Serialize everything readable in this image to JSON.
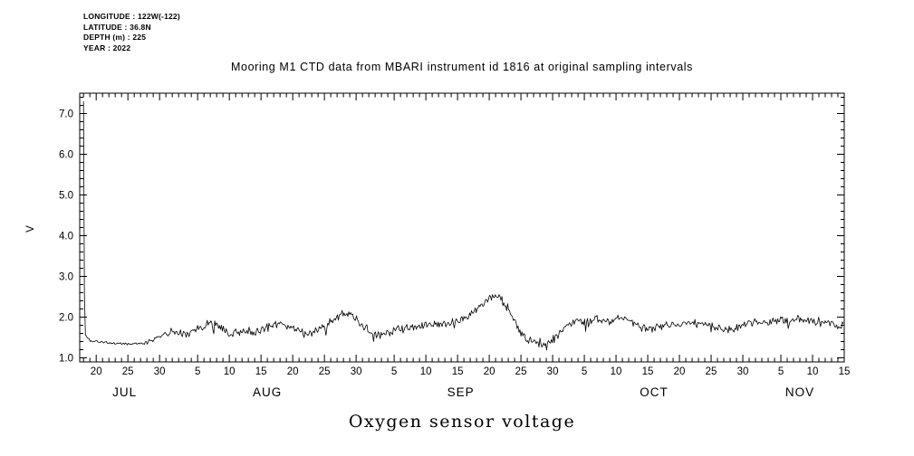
{
  "header": {
    "lines": [
      "LONGITUDE : 122W(-122)",
      "LATITUDE : 36.8N",
      "DEPTH (m) : 225",
      "YEAR : 2022"
    ]
  },
  "chart_data": {
    "type": "line",
    "title": "Mooring M1 CTD data from MBARI instrument id 1816 at original sampling intervals",
    "xlabel": "Oxygen sensor voltage",
    "ylabel": "V",
    "line_color": "#000000",
    "ylim": [
      0.9,
      7.5
    ],
    "y_major_ticks": [
      1.0,
      2.0,
      3.0,
      4.0,
      5.0,
      6.0,
      7.0
    ],
    "y_minor_step": 0.2,
    "x_unit": "days since 2022-07-18",
    "xlim_days": [
      -0.6,
      120
    ],
    "x_minor_step_days": 1,
    "x_major_ticks": [
      [
        2,
        "20"
      ],
      [
        7,
        "25"
      ],
      [
        12,
        "30"
      ],
      [
        18,
        "5"
      ],
      [
        23,
        "10"
      ],
      [
        28,
        "15"
      ],
      [
        33,
        "20"
      ],
      [
        38,
        "25"
      ],
      [
        43,
        "30"
      ],
      [
        49,
        "5"
      ],
      [
        54,
        "10"
      ],
      [
        59,
        "15"
      ],
      [
        64,
        "20"
      ],
      [
        69,
        "25"
      ],
      [
        74,
        "30"
      ],
      [
        79,
        "5"
      ],
      [
        84,
        "10"
      ],
      [
        89,
        "15"
      ],
      [
        94,
        "20"
      ],
      [
        99,
        "25"
      ],
      [
        104,
        "30"
      ],
      [
        110,
        "5"
      ],
      [
        115,
        "10"
      ],
      [
        120,
        "15"
      ]
    ],
    "month_labels": [
      [
        "JUL",
        6.5
      ],
      [
        "AUG",
        29.0
      ],
      [
        "SEP",
        59.5
      ],
      [
        "OCT",
        90.0
      ],
      [
        "NOV",
        113.0
      ]
    ],
    "series": [
      {
        "name": "oxygen sensor voltage (V)",
        "points_day_value": [
          [
            0,
            7.3
          ],
          [
            0.18,
            1.6
          ],
          [
            1,
            1.42
          ],
          [
            2,
            1.4
          ],
          [
            3,
            1.38
          ],
          [
            4,
            1.37
          ],
          [
            5,
            1.36
          ],
          [
            6,
            1.35
          ],
          [
            7,
            1.33
          ],
          [
            8,
            1.35
          ],
          [
            9,
            1.34
          ],
          [
            10,
            1.38
          ],
          [
            11,
            1.45
          ],
          [
            12,
            1.52
          ],
          [
            13,
            1.6
          ],
          [
            14,
            1.66
          ],
          [
            15,
            1.62
          ],
          [
            16,
            1.58
          ],
          [
            17,
            1.66
          ],
          [
            18,
            1.72
          ],
          [
            19,
            1.8
          ],
          [
            20,
            1.88
          ],
          [
            21,
            1.84
          ],
          [
            22,
            1.7
          ],
          [
            23,
            1.56
          ],
          [
            24,
            1.6
          ],
          [
            25,
            1.66
          ],
          [
            26,
            1.68
          ],
          [
            27,
            1.64
          ],
          [
            28,
            1.7
          ],
          [
            29,
            1.75
          ],
          [
            30,
            1.8
          ],
          [
            31,
            1.85
          ],
          [
            32,
            1.82
          ],
          [
            33,
            1.74
          ],
          [
            34,
            1.64
          ],
          [
            35,
            1.58
          ],
          [
            36,
            1.62
          ],
          [
            37,
            1.7
          ],
          [
            38,
            1.8
          ],
          [
            39,
            1.9
          ],
          [
            40,
            2.0
          ],
          [
            41,
            2.08
          ],
          [
            42,
            2.1
          ],
          [
            43,
            1.96
          ],
          [
            44,
            1.8
          ],
          [
            45,
            1.66
          ],
          [
            46,
            1.58
          ],
          [
            47,
            1.55
          ],
          [
            48,
            1.6
          ],
          [
            49,
            1.65
          ],
          [
            50,
            1.7
          ],
          [
            51,
            1.72
          ],
          [
            52,
            1.75
          ],
          [
            53,
            1.78
          ],
          [
            54,
            1.8
          ],
          [
            55,
            1.78
          ],
          [
            56,
            1.82
          ],
          [
            57,
            1.85
          ],
          [
            58,
            1.88
          ],
          [
            59,
            1.9
          ],
          [
            60,
            1.96
          ],
          [
            61,
            2.05
          ],
          [
            62,
            2.2
          ],
          [
            63,
            2.35
          ],
          [
            64,
            2.5
          ],
          [
            65,
            2.55
          ],
          [
            66,
            2.4
          ],
          [
            67,
            2.2
          ],
          [
            68,
            1.9
          ],
          [
            69,
            1.6
          ],
          [
            70,
            1.46
          ],
          [
            71,
            1.4
          ],
          [
            72,
            1.38
          ],
          [
            73,
            1.35
          ],
          [
            74,
            1.45
          ],
          [
            75,
            1.6
          ],
          [
            76,
            1.75
          ],
          [
            77,
            1.85
          ],
          [
            78,
            1.9
          ],
          [
            79,
            1.88
          ],
          [
            80,
            1.92
          ],
          [
            81,
            1.96
          ],
          [
            82,
            1.9
          ],
          [
            83,
            1.88
          ],
          [
            84,
            1.92
          ],
          [
            85,
            1.98
          ],
          [
            86,
            1.95
          ],
          [
            87,
            1.85
          ],
          [
            88,
            1.76
          ],
          [
            89,
            1.7
          ],
          [
            90,
            1.72
          ],
          [
            91,
            1.75
          ],
          [
            92,
            1.8
          ],
          [
            93,
            1.82
          ],
          [
            94,
            1.8
          ],
          [
            95,
            1.82
          ],
          [
            96,
            1.85
          ],
          [
            97,
            1.85
          ],
          [
            98,
            1.82
          ],
          [
            99,
            1.78
          ],
          [
            100,
            1.72
          ],
          [
            101,
            1.68
          ],
          [
            102,
            1.7
          ],
          [
            103,
            1.75
          ],
          [
            104,
            1.8
          ],
          [
            105,
            1.85
          ],
          [
            106,
            1.88
          ],
          [
            107,
            1.85
          ],
          [
            108,
            1.88
          ],
          [
            109,
            1.9
          ],
          [
            110,
            1.92
          ],
          [
            111,
            1.9
          ],
          [
            112,
            1.92
          ],
          [
            113,
            1.95
          ],
          [
            114,
            1.92
          ],
          [
            115,
            1.9
          ],
          [
            116,
            1.88
          ],
          [
            117,
            1.85
          ],
          [
            118,
            1.82
          ],
          [
            119,
            1.8
          ],
          [
            120,
            1.78
          ]
        ],
        "noise_segments": [
          [
            0,
            0.5,
            0.02
          ],
          [
            0.5,
            10,
            0.035
          ],
          [
            10,
            13,
            0.06
          ],
          [
            13,
            120.01,
            0.12
          ]
        ]
      }
    ]
  }
}
